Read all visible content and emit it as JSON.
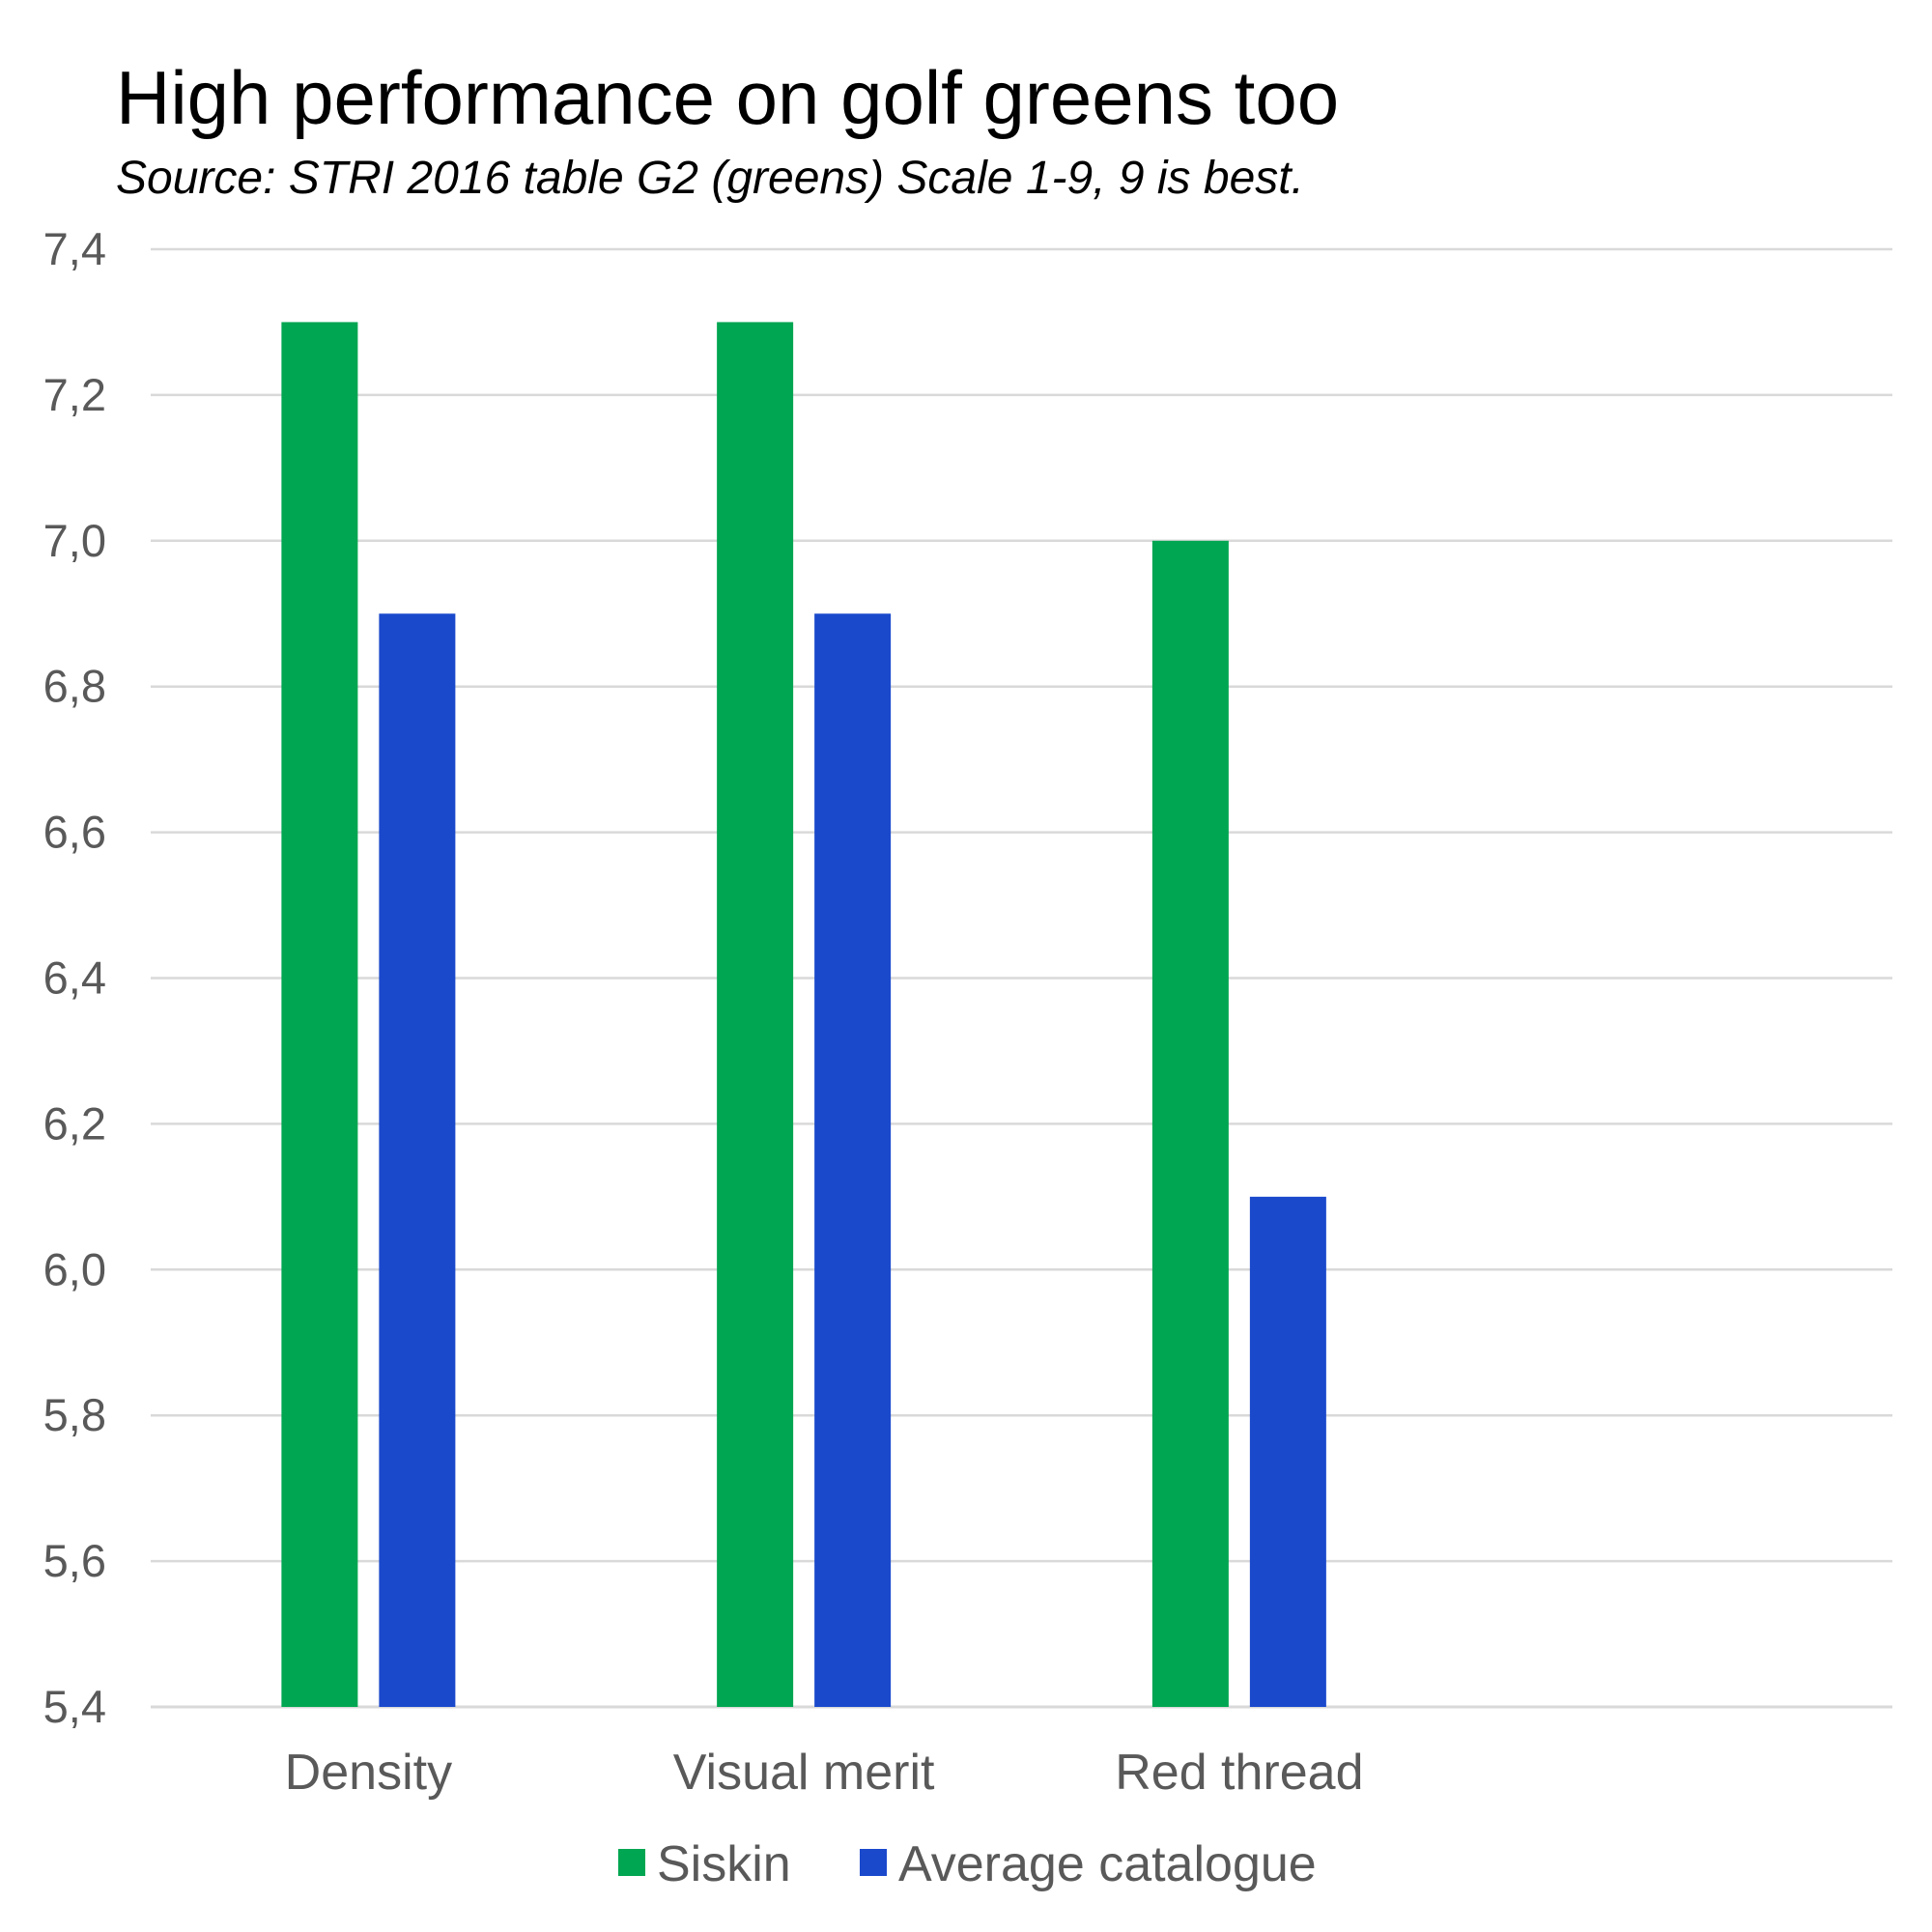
{
  "chart_data": {
    "type": "bar",
    "title": "High performance on golf greens too",
    "subtitle": "Source: STRI 2016 table G2 (greens) Scale 1-9, 9 is best.",
    "categories": [
      "Density",
      "Visual merit",
      "Red thread",
      ""
    ],
    "series": [
      {
        "name": "Siskin",
        "color": "#00A651",
        "values": [
          7.3,
          7.3,
          7.0,
          null
        ]
      },
      {
        "name": "Average catalogue",
        "color": "#1A49CC",
        "values": [
          6.9,
          6.9,
          6.1,
          null
        ]
      }
    ],
    "ylim": [
      5.4,
      7.4
    ],
    "yticks": [
      5.4,
      5.6,
      5.8,
      6.0,
      6.2,
      6.4,
      6.6,
      6.8,
      7.0,
      7.2,
      7.4
    ],
    "ytick_labels": [
      "5,4",
      "5,6",
      "5,8",
      "6,0",
      "6,2",
      "6,4",
      "6,6",
      "6,8",
      "7,0",
      "7,2",
      "7,4"
    ],
    "xlabel": "",
    "ylabel": "",
    "grid": true,
    "legend": "bottom",
    "gridColor": "#D9D9D9"
  }
}
